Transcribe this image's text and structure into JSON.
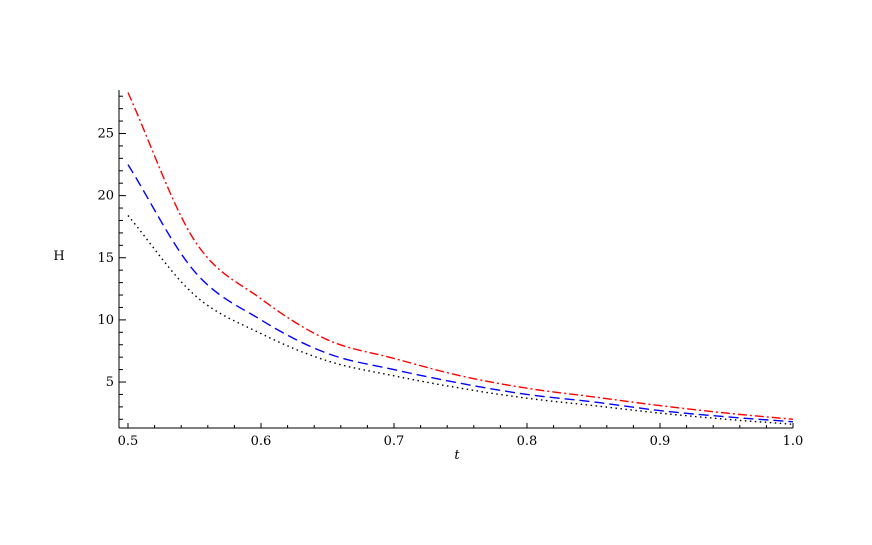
{
  "chart_data": {
    "type": "line",
    "title": "",
    "xlabel": "t",
    "ylabel": "H",
    "xlim": [
      0.5,
      1.0
    ],
    "ylim": [
      1.3,
      28.5
    ],
    "grid": false,
    "legend": "none",
    "x_ticks": [
      "0.5",
      "0.6",
      "0.7",
      "0.8",
      "0.9",
      "1.0"
    ],
    "x_tick_values": [
      0.5,
      0.6,
      0.7,
      0.8,
      0.9,
      1.0
    ],
    "y_ticks": [
      "5",
      "10",
      "15",
      "20",
      "25"
    ],
    "y_tick_values": [
      5,
      10,
      15,
      20,
      25
    ],
    "x": [
      0.5,
      0.55,
      0.6,
      0.65,
      0.7,
      0.75,
      0.8,
      0.85,
      0.9,
      0.95,
      1.0
    ],
    "series": [
      {
        "color": "#ff0000",
        "style": "dashdot",
        "values": [
          28.3,
          16.4,
          11.7,
          8.4,
          6.9,
          5.5,
          4.5,
          3.8,
          3.1,
          2.5,
          2.0
        ]
      },
      {
        "color": "#0000ff",
        "style": "dashed",
        "values": [
          22.5,
          13.9,
          10.0,
          7.3,
          6.0,
          4.9,
          4.0,
          3.4,
          2.7,
          2.2,
          1.8
        ]
      },
      {
        "color": "#000000",
        "style": "dotted",
        "values": [
          18.4,
          12.0,
          8.9,
          6.7,
          5.5,
          4.5,
          3.7,
          3.1,
          2.5,
          2.0,
          1.6
        ]
      }
    ]
  }
}
